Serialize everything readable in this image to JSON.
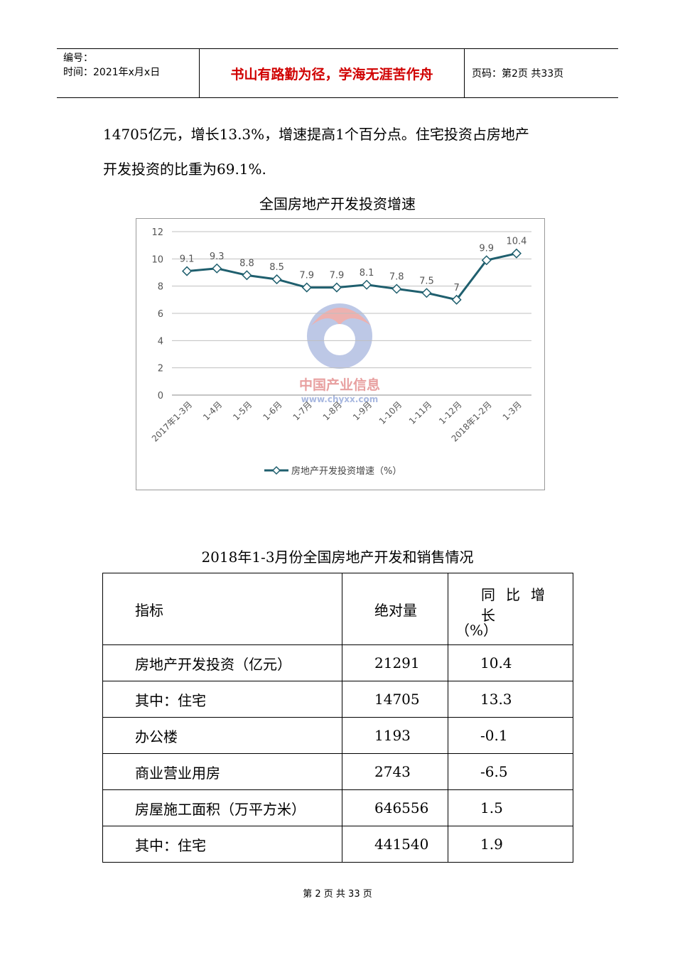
{
  "header": {
    "number_label": "编号：",
    "time_label": "时间：2021年x月x日",
    "motto": "书山有路勤为径，学海无涯苦作舟",
    "page_info": "页码：第2页  共33页"
  },
  "paragraph": {
    "line1": "14705亿元，增长13.3%，增速提高1个百分点。住宅投资占房地产",
    "line2": "开发投资的比重为69.1%."
  },
  "chart_caption": "全国房地产开发投资增速",
  "chart_data": {
    "type": "line",
    "categories": [
      "2017年1-3月",
      "1-4月",
      "1-5月",
      "1-6月",
      "1-7月",
      "1-8月",
      "1-9月",
      "1-10月",
      "1-11月",
      "1-12月",
      "2018年1-2月",
      "1-3月"
    ],
    "series": [
      {
        "name": "房地产开发投资增速（%）",
        "values": [
          9.1,
          9.3,
          8.8,
          8.5,
          7.9,
          7.9,
          8.1,
          7.8,
          7.5,
          7,
          9.9,
          10.4
        ]
      }
    ],
    "data_labels": [
      "9.1",
      "9.3",
      "8.8",
      "8.5",
      "7.9",
      "7.9",
      "8.1",
      "7.8",
      "7.5",
      "7",
      "9.9",
      "10.4"
    ],
    "ylim": [
      0,
      12
    ],
    "yticks": [
      "0",
      "2",
      "4",
      "6",
      "8",
      "10",
      "12"
    ],
    "grid": true,
    "legend": "bottom",
    "line_color": "#1f5f6e",
    "watermark": {
      "text": "中国产业信息",
      "url": "www.chyxx.com"
    }
  },
  "table_caption": "2018年1-3月份全国房地产开发和销售情况",
  "table": {
    "headers": {
      "c1": "指标",
      "c2": "绝对量",
      "c3_line1": "同比增长",
      "c3_line2": "（%）"
    },
    "rows": [
      [
        "房地产开发投资（亿元）",
        "21291",
        "10.4"
      ],
      [
        "其中：住宅",
        "14705",
        "13.3"
      ],
      [
        "办公楼",
        "1193",
        "-0.1"
      ],
      [
        "商业营业用房",
        "2743",
        "-6.5"
      ],
      [
        "房屋施工面积（万平方米）",
        "646556",
        "1.5"
      ],
      [
        "其中：住宅",
        "441540",
        "1.9"
      ]
    ]
  },
  "footer": "第 2 页 共 33 页"
}
